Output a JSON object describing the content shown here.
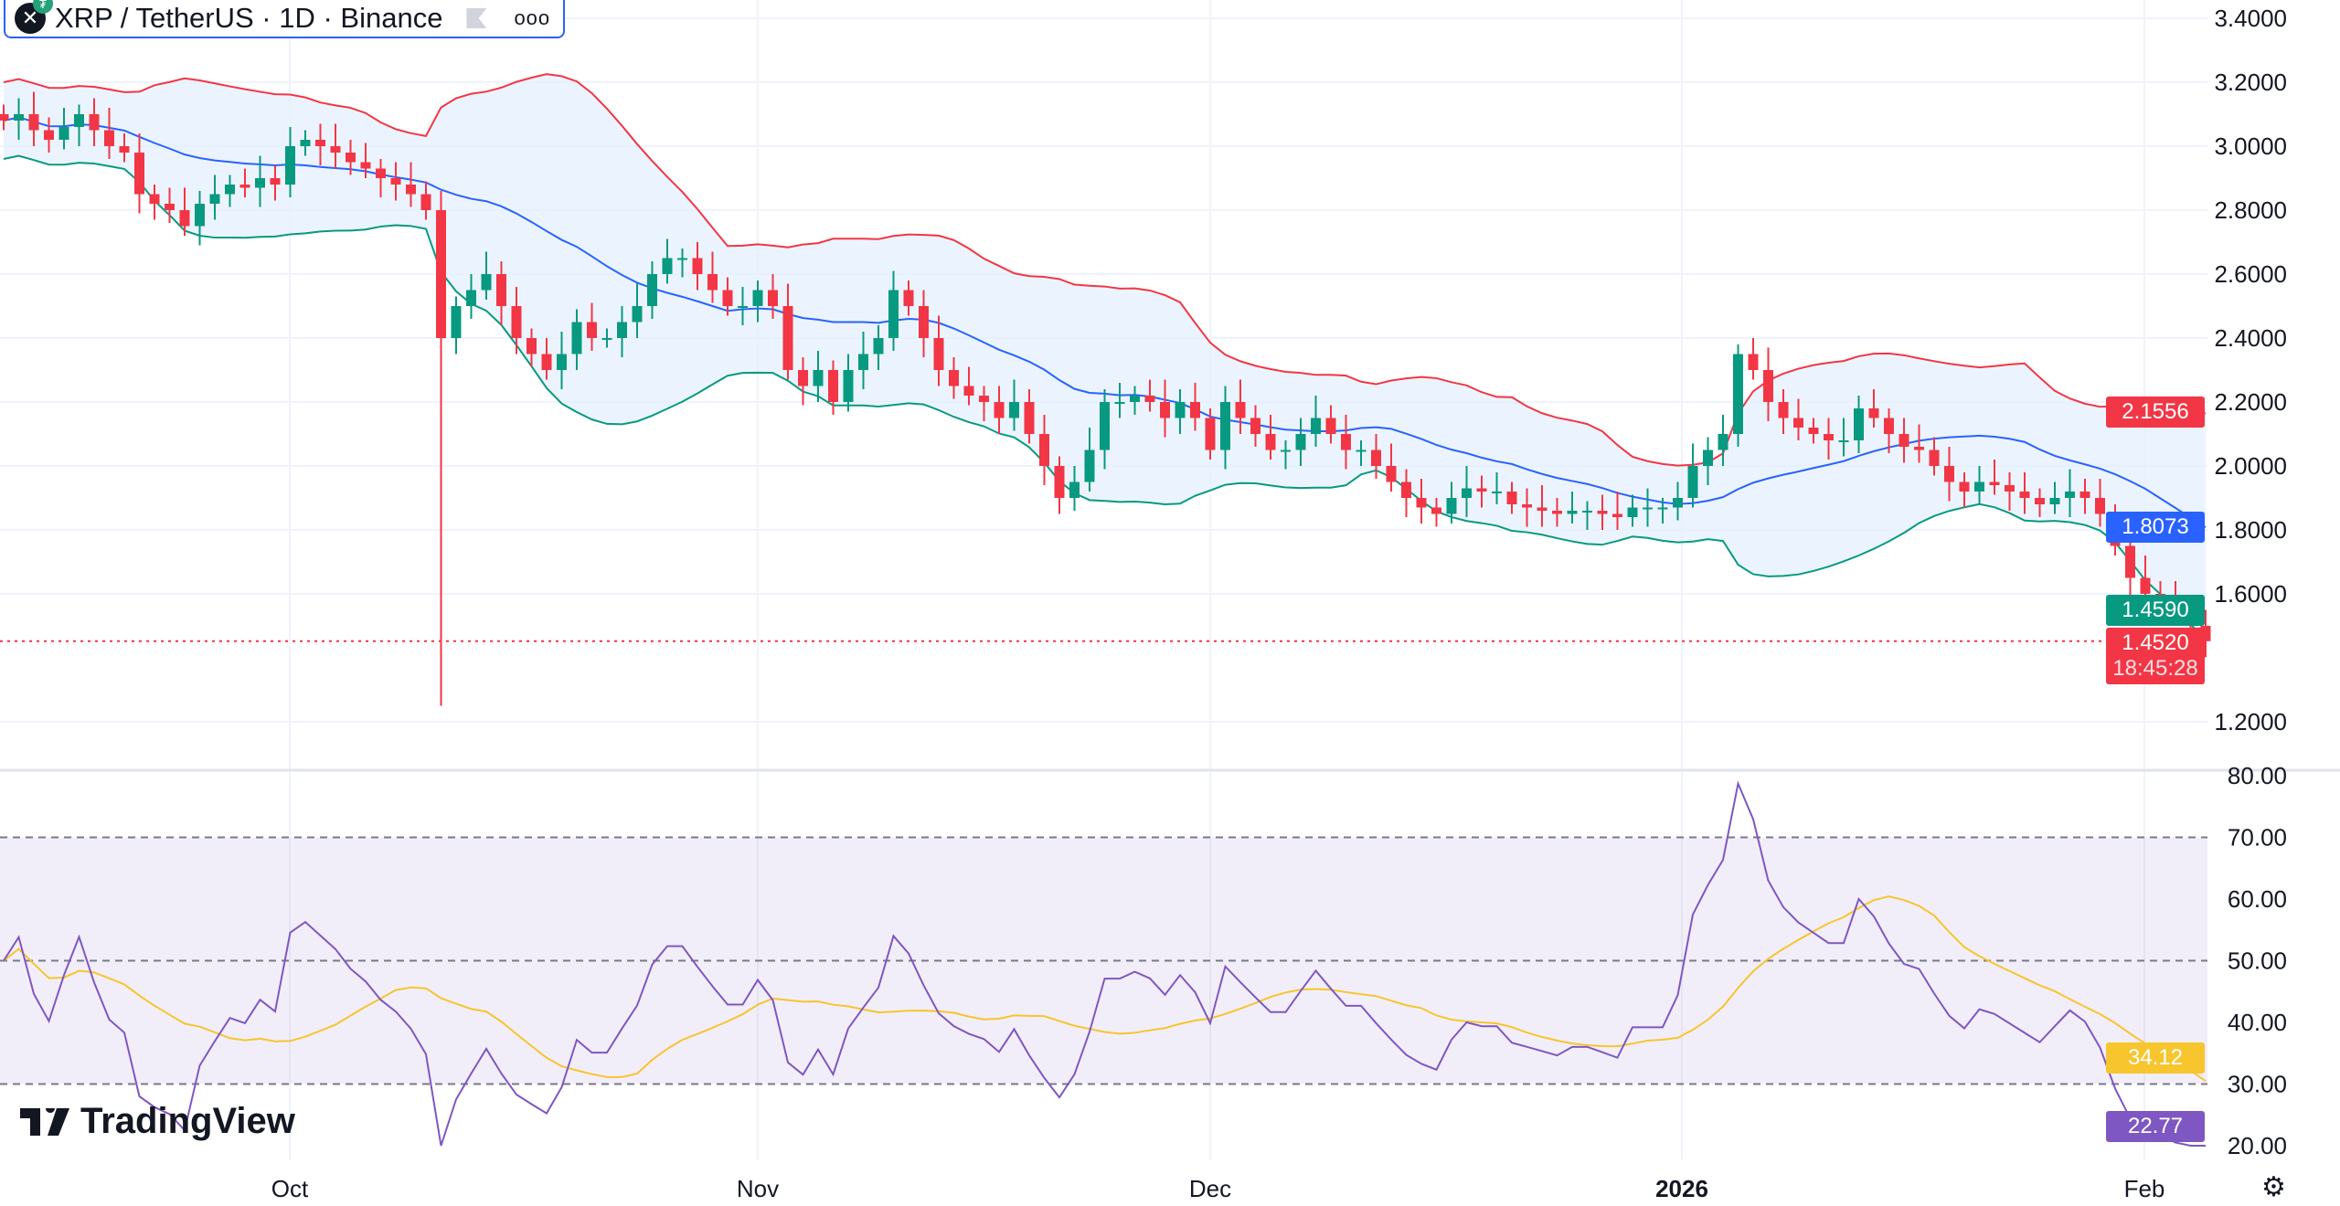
{
  "legend": {
    "title": "XRP / TetherUS · 1D · Binance",
    "symbol_icon": "xrp-icon",
    "quote_icon": "tether-icon",
    "more_icon": "more-dots-icon"
  },
  "price_axis": {
    "ticks": [
      "3.4000",
      "3.2000",
      "3.0000",
      "2.8000",
      "2.6000",
      "2.4000",
      "2.2000",
      "2.0000",
      "1.8000",
      "1.6000",
      "1.2000"
    ]
  },
  "rsi_axis": {
    "ticks": [
      "80.00",
      "70.00",
      "60.00",
      "50.00",
      "40.00",
      "30.00",
      "20.00"
    ]
  },
  "time_axis": {
    "labels": [
      "Oct",
      "Nov",
      "Dec",
      "2026",
      "Feb"
    ]
  },
  "tags": {
    "bb_upper": "2.1556",
    "bb_basis": "1.8073",
    "bb_lower": "1.4590",
    "last_price": "1.4520",
    "countdown": "18:45:28",
    "rsi_ma": "34.12",
    "rsi": "22.77"
  },
  "branding": {
    "logo": "TradingView"
  },
  "colors": {
    "up": "#089981",
    "down": "#f23645",
    "basis": "#2962ff",
    "upper": "#f23645",
    "lower": "#089981",
    "band_fill": "#e3effd",
    "rsi": "#7e57c2",
    "rsi_ma": "#f7c52d"
  },
  "chart_data": {
    "type": "candlestick",
    "interval": "1D",
    "start_date": "Sep 12",
    "closes": [
      3.08,
      3.1,
      3.05,
      3.02,
      3.06,
      3.1,
      3.05,
      3.0,
      2.98,
      2.85,
      2.82,
      2.8,
      2.75,
      2.82,
      2.85,
      2.88,
      2.87,
      2.9,
      2.88,
      3.0,
      3.02,
      3.0,
      2.98,
      2.95,
      2.93,
      2.9,
      2.88,
      2.85,
      2.8,
      2.4,
      2.5,
      2.55,
      2.6,
      2.5,
      2.4,
      2.35,
      2.3,
      2.35,
      2.45,
      2.4,
      2.4,
      2.45,
      2.5,
      2.6,
      2.65,
      2.65,
      2.6,
      2.55,
      2.5,
      2.5,
      2.55,
      2.5,
      2.3,
      2.25,
      2.3,
      2.2,
      2.3,
      2.35,
      2.4,
      2.55,
      2.5,
      2.4,
      2.3,
      2.25,
      2.22,
      2.2,
      2.15,
      2.2,
      2.1,
      2.0,
      1.9,
      1.95,
      2.05,
      2.2,
      2.2,
      2.22,
      2.2,
      2.15,
      2.2,
      2.15,
      2.05,
      2.2,
      2.15,
      2.1,
      2.05,
      2.05,
      2.1,
      2.15,
      2.1,
      2.05,
      2.05,
      2.0,
      1.95,
      1.9,
      1.87,
      1.85,
      1.9,
      1.93,
      1.92,
      1.92,
      1.88,
      1.87,
      1.86,
      1.85,
      1.86,
      1.86,
      1.85,
      1.84,
      1.87,
      1.87,
      1.87,
      1.9,
      2.0,
      2.05,
      2.1,
      2.35,
      2.3,
      2.2,
      2.15,
      2.12,
      2.1,
      2.08,
      2.08,
      2.18,
      2.15,
      2.1,
      2.06,
      2.05,
      2.0,
      1.95,
      1.92,
      1.95,
      1.94,
      1.92,
      1.9,
      1.88,
      1.9,
      1.92,
      1.9,
      1.85,
      1.75,
      1.65,
      1.6,
      1.58,
      1.55,
      1.5,
      1.452
    ],
    "notable_low": {
      "date": "Oct 10",
      "low": 1.25
    },
    "indicators": [
      "Bollinger Bands 20 2",
      "RSI 14 with SMA 14"
    ],
    "price_range": [
      1.2,
      3.4
    ],
    "rsi_range": [
      20,
      80
    ],
    "rsi_bands": [
      30,
      50,
      70
    ],
    "grid": true
  }
}
